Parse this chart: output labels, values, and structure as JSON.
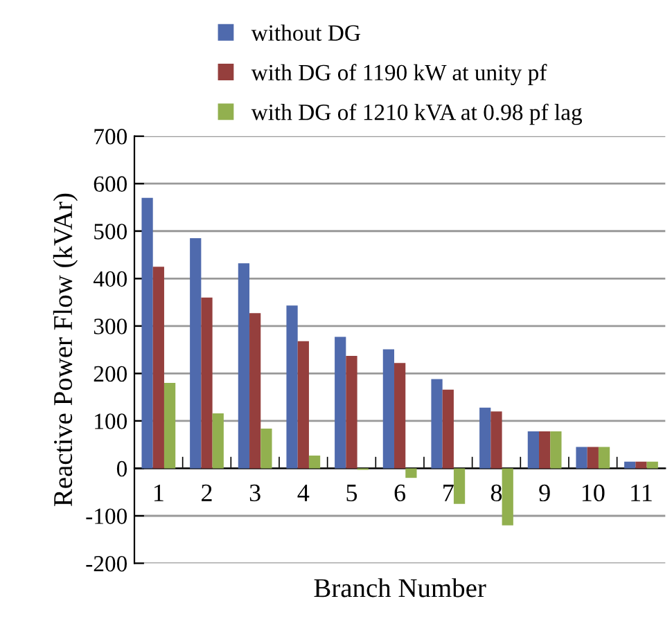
{
  "chart_data": {
    "type": "bar",
    "xlabel": "Branch Number",
    "ylabel": "Reactive Power Flow (kVAr)",
    "categories": [
      "1",
      "2",
      "3",
      "4",
      "5",
      "6",
      "7",
      "8",
      "9",
      "10",
      "11"
    ],
    "series": [
      {
        "name": "without DG",
        "color": "#4f6aad",
        "values": [
          570,
          485,
          432,
          343,
          277,
          251,
          188,
          128,
          78,
          45,
          14
        ]
      },
      {
        "name": "with DG of 1190 kW at unity pf",
        "color": "#953f3d",
        "values": [
          425,
          360,
          327,
          268,
          237,
          222,
          166,
          120,
          78,
          45,
          14
        ]
      },
      {
        "name": "with DG of 1210 kVA at 0.98 pf lag",
        "color": "#92b04f",
        "values": [
          180,
          116,
          84,
          27,
          -3,
          -20,
          -75,
          -120,
          78,
          45,
          14
        ]
      }
    ],
    "ylim": [
      -200,
      700
    ],
    "yticks": [
      -200,
      -100,
      0,
      100,
      200,
      300,
      400,
      500,
      600,
      700
    ],
    "grid": "y",
    "legend": "top"
  }
}
